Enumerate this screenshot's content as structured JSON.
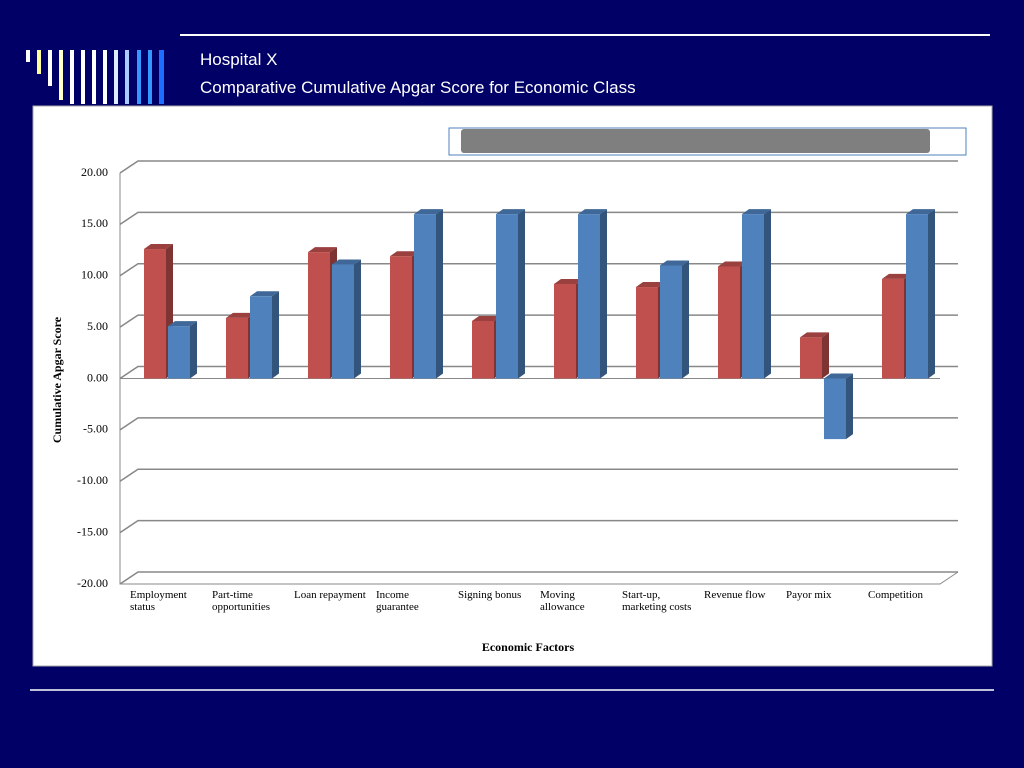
{
  "header": {
    "title": "Hospital X",
    "subtitle": "Comparative Cumulative Apgar Score for Economic Class"
  },
  "chart_data": {
    "type": "bar",
    "categories": [
      "Employment status",
      "Part-time opportunities",
      "Loan repayment",
      "Income guarantee",
      "Signing bonus",
      "Moving allowance",
      "Start-up, marketing costs",
      "Revenue flow",
      "Payor mix",
      "Competition"
    ],
    "series": [
      {
        "color": "#c0504d",
        "values": [
          12.6,
          5.9,
          12.3,
          11.9,
          5.6,
          9.2,
          8.9,
          10.9,
          4.0,
          9.7
        ]
      },
      {
        "color": "#4f81bd",
        "values": [
          5.1,
          8.0,
          11.1,
          16.0,
          16.0,
          16.0,
          11.0,
          16.0,
          -5.9,
          16.0
        ]
      }
    ],
    "ylim": [
      -20,
      20
    ],
    "yticks": [
      {
        "value": -20,
        "label": "-20.00"
      },
      {
        "value": -15,
        "label": "-15.00"
      },
      {
        "value": -10,
        "label": "-10.00"
      },
      {
        "value": -5,
        "label": "-5.00"
      },
      {
        "value": 0,
        "label": "0.00"
      },
      {
        "value": 5,
        "label": "5.00"
      },
      {
        "value": 10,
        "label": "10.00"
      },
      {
        "value": 15,
        "label": "15.00"
      },
      {
        "value": 20,
        "label": "20.00"
      }
    ],
    "y_label": "Cumulative Apgar Score",
    "x_label": "Economic Factors",
    "grid": true
  }
}
